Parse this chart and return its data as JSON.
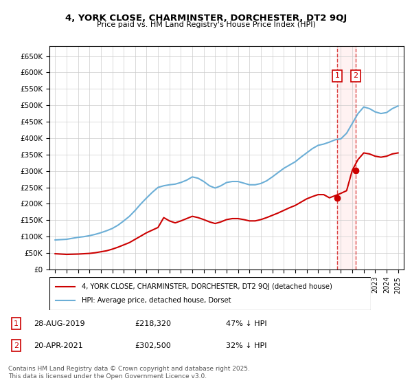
{
  "title": "4, YORK CLOSE, CHARMINSTER, DORCHESTER, DT2 9QJ",
  "subtitle": "Price paid vs. HM Land Registry's House Price Index (HPI)",
  "hpi_years": [
    1995,
    1995.5,
    1996,
    1996.5,
    1997,
    1997.5,
    1998,
    1998.5,
    1999,
    1999.5,
    2000,
    2000.5,
    2001,
    2001.5,
    2002,
    2002.5,
    2003,
    2003.5,
    2004,
    2004.5,
    2005,
    2005.5,
    2006,
    2006.5,
    2007,
    2007.5,
    2008,
    2008.5,
    2009,
    2009.5,
    2010,
    2010.5,
    2011,
    2011.5,
    2012,
    2012.5,
    2013,
    2013.5,
    2014,
    2014.5,
    2015,
    2015.5,
    2016,
    2016.5,
    2017,
    2017.5,
    2018,
    2018.5,
    2019,
    2019.5,
    2020,
    2020.5,
    2021,
    2021.5,
    2022,
    2022.5,
    2023,
    2023.5,
    2024,
    2024.5,
    2025
  ],
  "hpi_values": [
    90000,
    91000,
    92000,
    95000,
    98000,
    100000,
    103000,
    107000,
    112000,
    118000,
    125000,
    135000,
    148000,
    162000,
    180000,
    200000,
    218000,
    235000,
    250000,
    255000,
    258000,
    260000,
    265000,
    272000,
    282000,
    278000,
    268000,
    255000,
    248000,
    255000,
    265000,
    268000,
    268000,
    263000,
    258000,
    258000,
    262000,
    270000,
    282000,
    295000,
    308000,
    318000,
    328000,
    342000,
    355000,
    368000,
    378000,
    382000,
    388000,
    395000,
    398000,
    415000,
    445000,
    475000,
    495000,
    490000,
    480000,
    475000,
    478000,
    490000,
    498000
  ],
  "price_years": [
    1995,
    1995.5,
    1996,
    1996.5,
    1997,
    1997.5,
    1998,
    1998.5,
    1999,
    1999.5,
    2000,
    2000.5,
    2001,
    2001.5,
    2002,
    2002.5,
    2003,
    2003.5,
    2004,
    2004.5,
    2005,
    2005.5,
    2006,
    2006.5,
    2007,
    2007.5,
    2008,
    2008.5,
    2009,
    2009.5,
    2010,
    2010.5,
    2011,
    2011.5,
    2012,
    2012.5,
    2013,
    2013.5,
    2014,
    2014.5,
    2015,
    2015.5,
    2016,
    2016.5,
    2017,
    2017.5,
    2018,
    2018.5,
    2019,
    2019.5,
    2020,
    2020.5,
    2021,
    2021.5,
    2022,
    2022.5,
    2023,
    2023.5,
    2024,
    2024.5,
    2025
  ],
  "price_values": [
    48000,
    47000,
    46000,
    46500,
    47000,
    48000,
    49000,
    51000,
    54000,
    57000,
    62000,
    68000,
    75000,
    82000,
    92000,
    102000,
    112000,
    120000,
    128000,
    158000,
    148000,
    142000,
    148000,
    155000,
    162000,
    158000,
    152000,
    145000,
    140000,
    145000,
    152000,
    155000,
    155000,
    152000,
    148000,
    148000,
    152000,
    158000,
    165000,
    172000,
    180000,
    188000,
    195000,
    205000,
    215000,
    222000,
    228000,
    228000,
    218320,
    225000,
    232000,
    240000,
    302500,
    335000,
    355000,
    352000,
    345000,
    342000,
    345000,
    352000,
    355000
  ],
  "sale1_year": 2019.664,
  "sale1_price": 218320,
  "sale2_year": 2021.3,
  "sale2_price": 302500,
  "hpi_color": "#6baed6",
  "price_color": "#cc0000",
  "vline_color": "#cc0000",
  "annotation_fill": "#ffe0e0",
  "ylim_max": 680000,
  "ylim_min": 0,
  "xlabel_ticks": [
    1995,
    1996,
    1997,
    1998,
    1999,
    2000,
    2001,
    2002,
    2003,
    2004,
    2005,
    2006,
    2007,
    2008,
    2009,
    2010,
    2011,
    2012,
    2013,
    2014,
    2015,
    2016,
    2017,
    2018,
    2019,
    2020,
    2021,
    2022,
    2023,
    2024,
    2025
  ],
  "legend_label_price": "4, YORK CLOSE, CHARMINSTER, DORCHESTER, DT2 9QJ (detached house)",
  "legend_label_hpi": "HPI: Average price, detached house, Dorset",
  "table_row1": "28-AUG-2019    £218,320    47% ↓ HPI",
  "table_row2": "20-APR-2021    £302,500    32% ↓ HPI",
  "footer": "Contains HM Land Registry data © Crown copyright and database right 2025.\nThis data is licensed under the Open Government Licence v3.0.",
  "bg_color": "#ffffff",
  "grid_color": "#cccccc"
}
